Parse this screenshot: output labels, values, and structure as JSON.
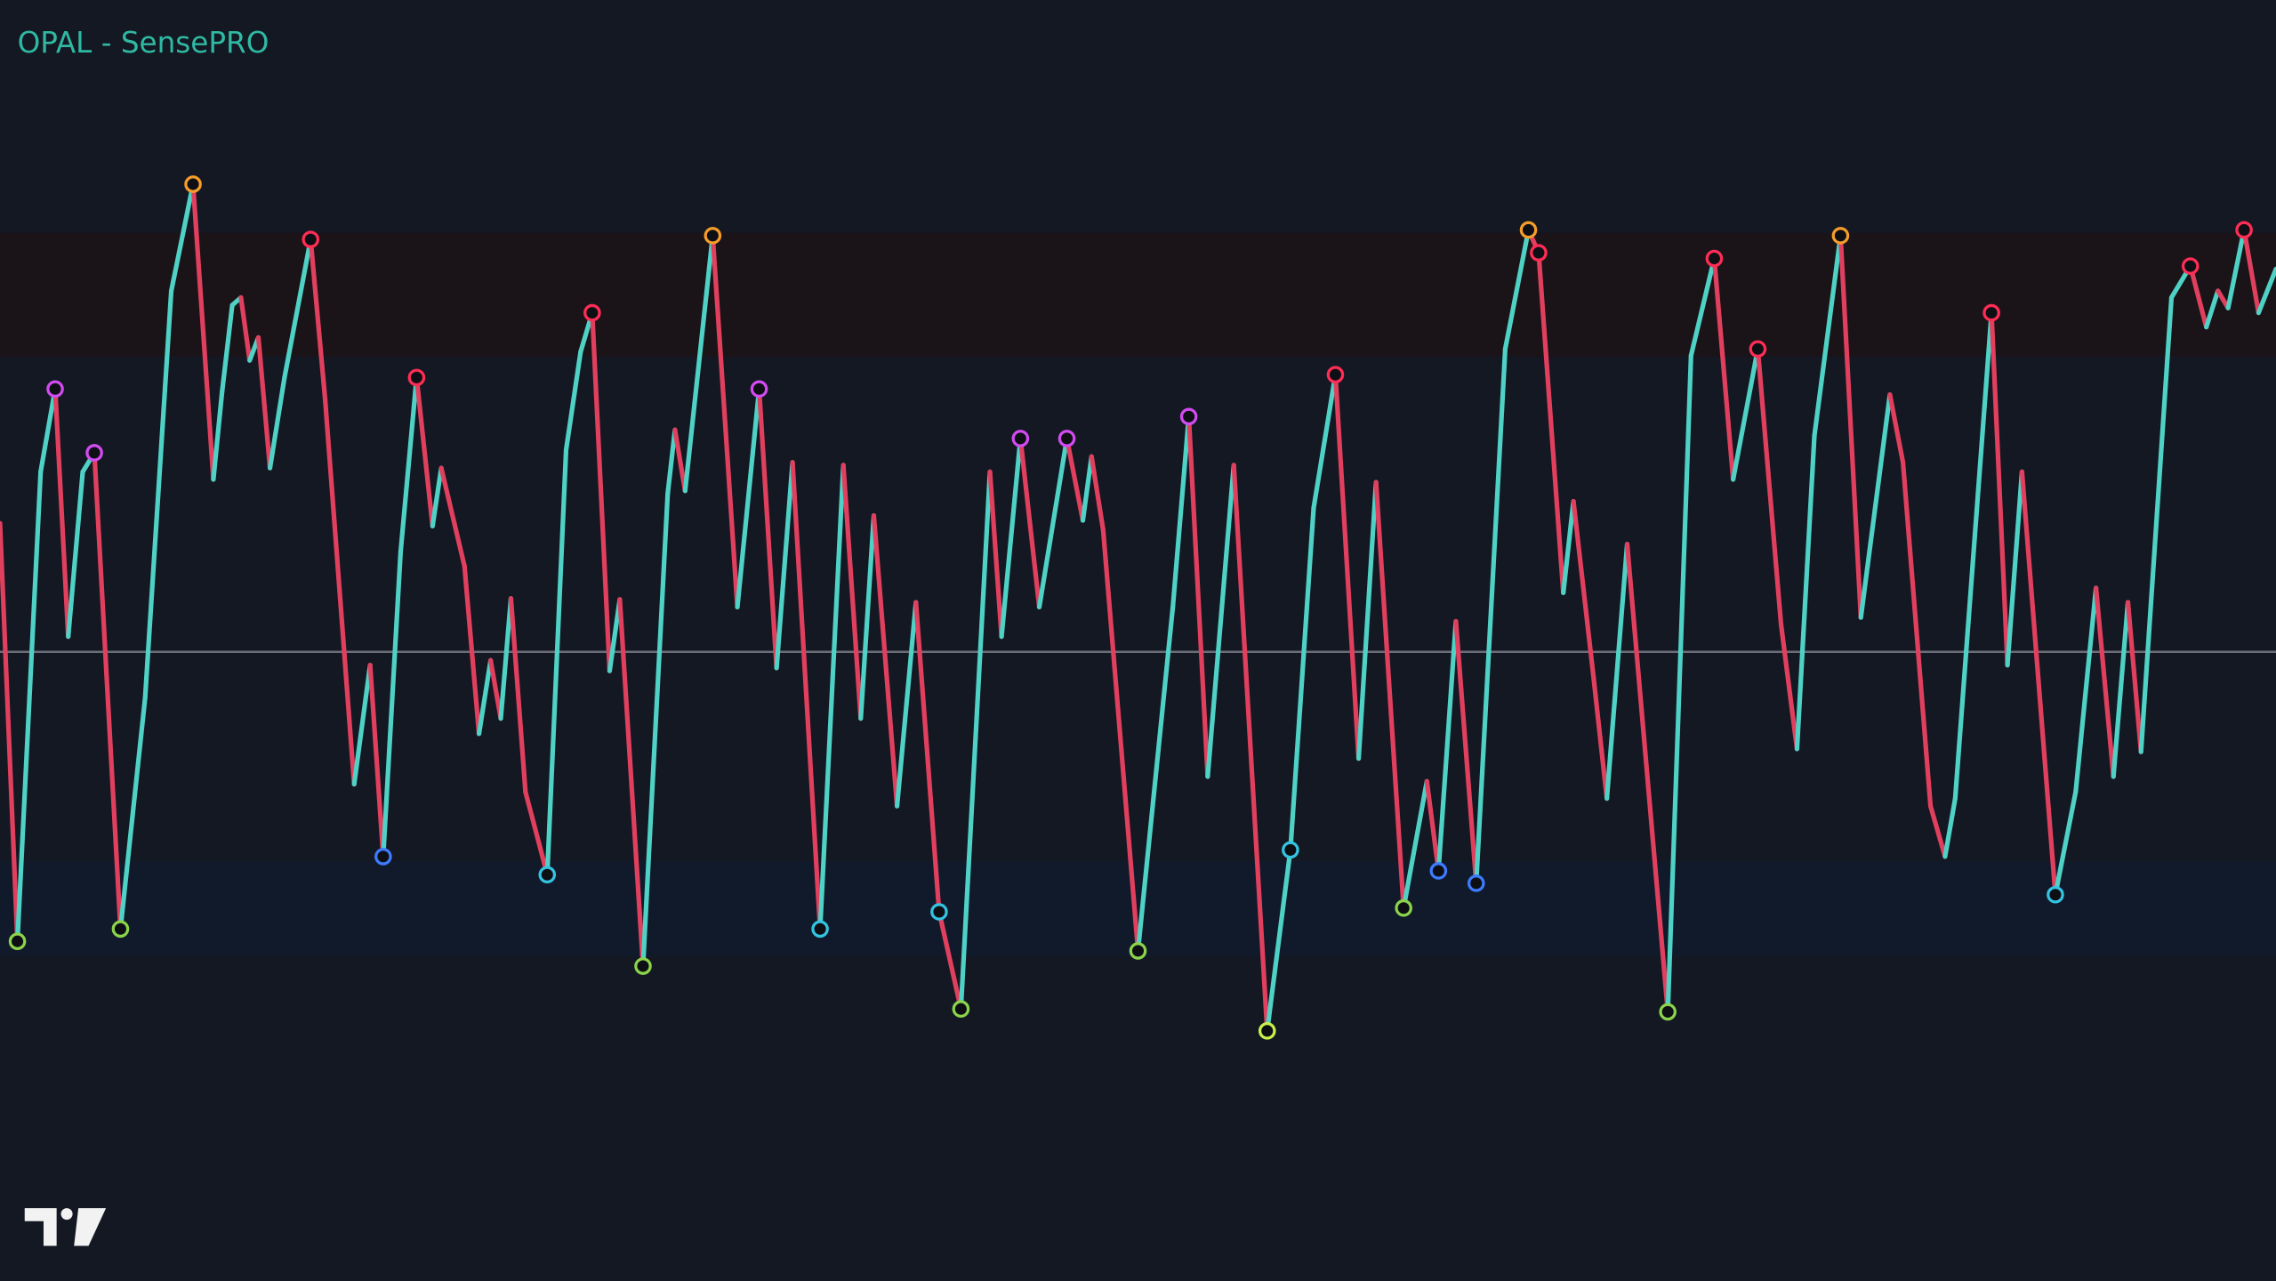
{
  "chart_data": {
    "type": "line",
    "title": "OPAL - SensePRO",
    "xlim": [
      0,
      1568
    ],
    "ylim": [
      0,
      100
    ],
    "midline": 45,
    "zones": [
      {
        "from": 76,
        "to": 89,
        "color": "#1a1418"
      },
      {
        "from": 13,
        "to": 23,
        "color": "#111a2b"
      }
    ],
    "rise_color": "#4fd1c5",
    "fall_color": "#e0405e",
    "x": [
      0,
      12,
      28,
      38,
      47,
      57,
      65,
      83,
      100,
      118,
      133,
      147,
      153,
      160,
      166,
      172,
      178,
      186,
      196,
      214,
      224,
      244,
      255,
      264,
      276,
      287,
      298,
      304,
      320,
      330,
      338,
      345,
      352,
      362,
      377,
      390,
      400,
      408,
      420,
      427,
      443,
      460,
      465,
      472,
      491,
      508,
      523,
      535,
      546,
      565,
      581,
      593,
      602,
      618,
      631,
      647,
      662,
      682,
      690,
      703,
      716,
      735,
      746,
      752,
      760,
      784,
      808,
      819,
      832,
      850,
      873,
      889,
      905,
      920,
      936,
      948,
      967,
      983,
      991,
      1003,
      1017,
      1037,
      1053,
      1060,
      1077,
      1084,
      1098,
      1107,
      1121,
      1149,
      1165,
      1181,
      1194,
      1211,
      1227,
      1238,
      1250,
      1268,
      1282,
      1302,
      1311,
      1330,
      1340,
      1347,
      1372,
      1383,
      1393,
      1416,
      1430,
      1444,
      1456,
      1466,
      1475,
      1496,
      1509,
      1520,
      1528,
      1535,
      1546,
      1556,
      1568
    ],
    "values": [
      58.5,
      14.6,
      63.9,
      72.6,
      46.6,
      63.9,
      65.9,
      15.9,
      40.2,
      82.9,
      94.1,
      63.1,
      72.3,
      81.4,
      82.2,
      75.6,
      78.0,
      64.3,
      73.8,
      88.3,
      71.5,
      31.1,
      43.6,
      23.5,
      55.5,
      73.8,
      58.2,
      64.3,
      54.0,
      36.4,
      44.1,
      38.0,
      50.6,
      30.3,
      21.6,
      66.2,
      76.5,
      80.6,
      43.0,
      50.5,
      12.0,
      61.6,
      68.3,
      61.9,
      88.7,
      49.7,
      72.6,
      43.3,
      64.9,
      15.9,
      64.6,
      38.0,
      59.3,
      28.8,
      50.2,
      17.7,
      7.5,
      63.9,
      46.6,
      67.4,
      49.7,
      67.4,
      58.8,
      65.5,
      57.8,
      13.6,
      49.7,
      69.7,
      31.9,
      64.6,
      5.2,
      24.2,
      60.1,
      74.1,
      33.8,
      62.8,
      18.1,
      31.4,
      22.0,
      48.2,
      20.7,
      76.8,
      89.3,
      86.9,
      51.2,
      60.8,
      42.1,
      29.6,
      56.3,
      7.2,
      76.1,
      86.3,
      63.1,
      76.8,
      47.9,
      34.8,
      67.7,
      88.7,
      48.6,
      72.0,
      64.9,
      28.8,
      23.5,
      29.6,
      80.6,
      43.6,
      63.9,
      19.5,
      30.3,
      51.7,
      31.9,
      50.2,
      34.5,
      82.2,
      85.5,
      79.1,
      82.9,
      81.1,
      89.3,
      80.6,
      85.2
    ],
    "markers": [
      {
        "at": 10,
        "color": "#f59c2a"
      },
      {
        "at": 44,
        "color": "#f59c2a"
      },
      {
        "at": 82,
        "color": "#f59c2a"
      },
      {
        "at": 97,
        "color": "#f59c2a"
      },
      {
        "at": 19,
        "color": "#ff2d55"
      },
      {
        "at": 25,
        "color": "#ff2d55"
      },
      {
        "at": 37,
        "color": "#ff2d55"
      },
      {
        "at": 73,
        "color": "#ff2d55"
      },
      {
        "at": 83,
        "color": "#ff2d55"
      },
      {
        "at": 91,
        "color": "#ff2d55"
      },
      {
        "at": 93,
        "color": "#ff2d55"
      },
      {
        "at": 104,
        "color": "#ff2d55"
      },
      {
        "at": 114,
        "color": "#ff2d55"
      },
      {
        "at": 118,
        "color": "#ff2d55"
      },
      {
        "at": 3,
        "color": "#d24bf0"
      },
      {
        "at": 6,
        "color": "#d24bf0"
      },
      {
        "at": 46,
        "color": "#d24bf0"
      },
      {
        "at": 59,
        "color": "#d24bf0"
      },
      {
        "at": 61,
        "color": "#d24bf0"
      },
      {
        "at": 67,
        "color": "#d24bf0"
      },
      {
        "at": 1,
        "color": "#8bd34a"
      },
      {
        "at": 7,
        "color": "#8bd34a"
      },
      {
        "at": 40,
        "color": "#8bd34a"
      },
      {
        "at": 56,
        "color": "#8bd34a"
      },
      {
        "at": 65,
        "color": "#8bd34a"
      },
      {
        "at": 70,
        "color": "#c8f04a"
      },
      {
        "at": 76,
        "color": "#8bd34a"
      },
      {
        "at": 89,
        "color": "#8bd34a"
      },
      {
        "at": 23,
        "color": "#3d7bff"
      },
      {
        "at": 34,
        "color": "#34c3e0"
      },
      {
        "at": 49,
        "color": "#34c3e0"
      },
      {
        "at": 55,
        "color": "#34c3e0"
      },
      {
        "at": 71,
        "color": "#34c3e0"
      },
      {
        "at": 78,
        "color": "#3d7bff"
      },
      {
        "at": 80,
        "color": "#3d7bff"
      },
      {
        "at": 107,
        "color": "#34c3e0"
      }
    ]
  }
}
